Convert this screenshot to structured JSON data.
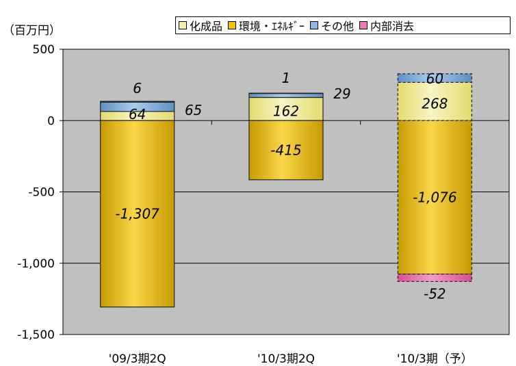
{
  "unit_label": "（百万円）",
  "legend": [
    {
      "label": "化成品",
      "color": "#f3efa6"
    },
    {
      "label": "環境・ｴﾈﾙｷﾞｰ",
      "color": "#f2c200"
    },
    {
      "label": "その他",
      "color": "#8ab7e4"
    },
    {
      "label": "内部消去",
      "color": "#ee79b6"
    }
  ],
  "chart_data": {
    "type": "bar",
    "stacked": true,
    "categories": [
      "'09/3期2Q",
      "'10/3期2Q",
      "'10/3期（予）"
    ],
    "series": [
      {
        "name": "化成品",
        "values": [
          64,
          162,
          268
        ]
      },
      {
        "name": "環境・ｴﾈﾙｷﾞｰ",
        "values": [
          -1307,
          -415,
          -1076
        ]
      },
      {
        "name": "その他",
        "values": [
          65,
          29,
          60
        ]
      },
      {
        "name": "内部消去",
        "values": [
          6,
          1,
          -52
        ]
      }
    ],
    "data_labels": [
      [
        "64",
        "-1,307",
        "65",
        "6"
      ],
      [
        "162",
        "-415",
        "29",
        "1"
      ],
      [
        "268",
        "-1,076",
        "60",
        "-52"
      ]
    ],
    "ylim": [
      -1500,
      500
    ],
    "yticks": [
      500,
      0,
      -500,
      -1000,
      -1500
    ],
    "ytick_labels": [
      "500",
      "0",
      "-500",
      "-1,000",
      "-1,500"
    ],
    "forecast_category": 2,
    "plot_background": "#c0c0c0",
    "grid": true
  }
}
